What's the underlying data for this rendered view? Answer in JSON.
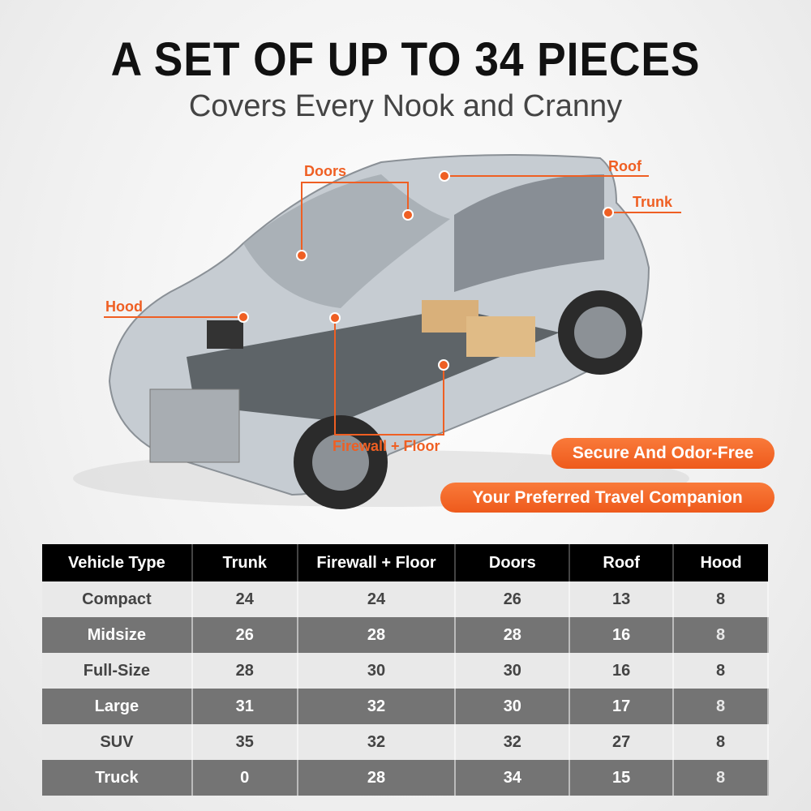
{
  "header": {
    "title": "A SET OF UP TO 34 PIECES",
    "subtitle": "Covers Every Nook and Cranny"
  },
  "callouts": {
    "doors": "Doors",
    "roof": "Roof",
    "trunk": "Trunk",
    "hood": "Hood",
    "firewall_floor": "Firewall + Floor"
  },
  "badges": [
    "Secure And Odor-Free",
    "Your Preferred Travel Companion"
  ],
  "colors": {
    "accent": "#ef5f23",
    "header_bg": "#000000",
    "row_dark": "#747474",
    "row_light": "#e9e9e9"
  },
  "table": {
    "columns": [
      "Vehicle Type",
      "Trunk",
      "Firewall + Floor",
      "Doors",
      "Roof",
      "Hood"
    ],
    "rows": [
      [
        "Compact",
        "24",
        "24",
        "26",
        "13",
        "8"
      ],
      [
        "Midsize",
        "26",
        "28",
        "28",
        "16",
        "8"
      ],
      [
        "Full-Size",
        "28",
        "30",
        "30",
        "16",
        "8"
      ],
      [
        "Large",
        "31",
        "32",
        "30",
        "17",
        "8"
      ],
      [
        "SUV",
        "35",
        "32",
        "32",
        "27",
        "8"
      ],
      [
        "Truck",
        "0",
        "28",
        "34",
        "15",
        "8"
      ]
    ]
  }
}
